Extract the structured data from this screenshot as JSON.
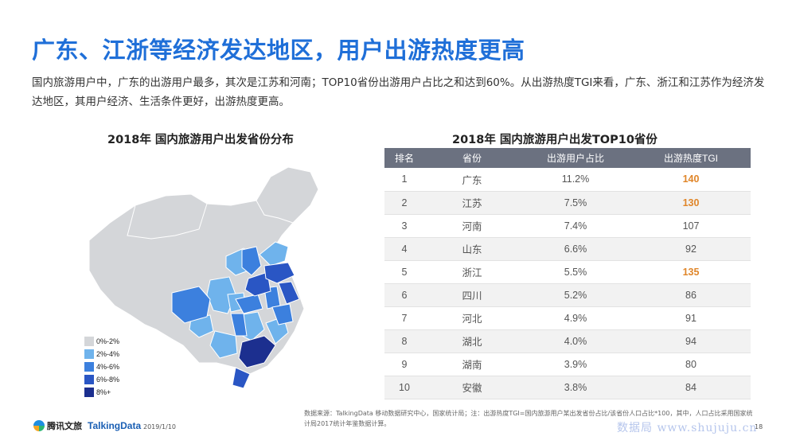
{
  "title": "广东、江浙等经济发达地区，用户出游热度更高",
  "description": "国内旅游用户中，广东的出游用户最多，其次是江苏和河南；TOP10省份出游用户占比之和达到60%。从出游热度TGI来看，广东、浙江和江苏作为经济发达地区，其用户经济、生活条件更好，出游热度更高。",
  "map_title": "2018年 国内旅游用户出发省份分布",
  "table_title": "2018年 国内旅游用户出发TOP10省份",
  "colors": {
    "title": "#1f6fd8",
    "level0": "#d4d6d9",
    "level1": "#6fb3ec",
    "level2": "#3c80de",
    "level3": "#2a56c4",
    "level4": "#1c2f8f",
    "highlight": "#e0862a",
    "header": "#6b7180"
  },
  "legend": [
    {
      "label": "0%-2%",
      "color": "#d4d6d9"
    },
    {
      "label": "2%-4%",
      "color": "#6fb3ec"
    },
    {
      "label": "4%-6%",
      "color": "#3c80de"
    },
    {
      "label": "6%-8%",
      "color": "#2a56c4"
    },
    {
      "label": "8%+",
      "color": "#1c2f8f"
    }
  ],
  "chart_data": [
    {
      "type": "table",
      "title": "2018年 国内旅游用户出发TOP10省份",
      "columns": [
        "排名",
        "省份",
        "出游用户占比",
        "出游热度TGI"
      ],
      "rows": [
        {
          "rank": "1",
          "province": "广东",
          "share": "11.2%",
          "tgi": "140",
          "highlight": true
        },
        {
          "rank": "2",
          "province": "江苏",
          "share": "7.5%",
          "tgi": "130",
          "highlight": true
        },
        {
          "rank": "3",
          "province": "河南",
          "share": "7.4%",
          "tgi": "107",
          "highlight": false
        },
        {
          "rank": "4",
          "province": "山东",
          "share": "6.6%",
          "tgi": "92",
          "highlight": false
        },
        {
          "rank": "5",
          "province": "浙江",
          "share": "5.5%",
          "tgi": "135",
          "highlight": true
        },
        {
          "rank": "6",
          "province": "四川",
          "share": "5.2%",
          "tgi": "86",
          "highlight": false
        },
        {
          "rank": "7",
          "province": "河北",
          "share": "4.9%",
          "tgi": "91",
          "highlight": false
        },
        {
          "rank": "8",
          "province": "湖北",
          "share": "4.0%",
          "tgi": "94",
          "highlight": false
        },
        {
          "rank": "9",
          "province": "湖南",
          "share": "3.9%",
          "tgi": "80",
          "highlight": false
        },
        {
          "rank": "10",
          "province": "安徽",
          "share": "3.8%",
          "tgi": "84",
          "highlight": false
        }
      ]
    }
  ],
  "footer": {
    "source": "数据来源：TalkingData 移动数据研究中心，国家统计局；注：出游热度TGI=国内旅游用户某出发省份占比/该省份人口占比*100，其中，人口占比采用国家统计局2017统计年鉴数据计算。",
    "logo1": "腾讯文旅",
    "logo2": "TalkingData",
    "date": "2019/1/10",
    "page": "18",
    "watermark": "数据局 www.shujuju.cn"
  }
}
